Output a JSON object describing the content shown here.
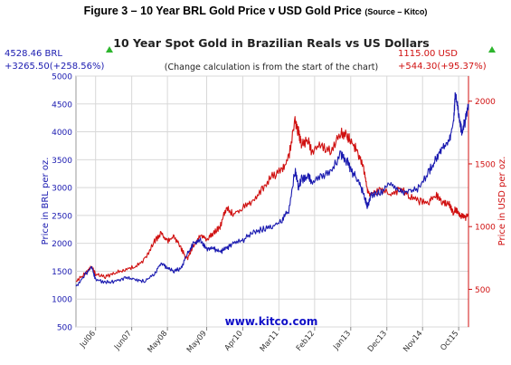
{
  "figure": {
    "caption_main": "Figure 3 – 10 Year BRL Gold Price v USD Gold Price",
    "caption_source": "(Source – Kitco)"
  },
  "chart_data": {
    "type": "line",
    "title": "10 Year Spot Gold in Brazilian Reals vs US Dollars",
    "subtitle": "(Change calculation is from the start of the chart)",
    "watermark": "www.kitco.com",
    "left_readout": {
      "price": "4528.46 BRL",
      "change": "+3265.50(+258.56%)",
      "color": "#1a1ab0"
    },
    "right_readout": {
      "price": "1115.00 USD",
      "change": "+544.30(+95.37%)",
      "color": "#d01010"
    },
    "up_marker_color": "#2db52d",
    "ylabel_left": "Price in BRL per oz.",
    "ylabel_right": "Price in USD per oz.",
    "ylim_left": [
      500,
      5000
    ],
    "ylim_right": [
      200,
      2200
    ],
    "yticks_left": [
      500,
      1000,
      1500,
      2000,
      2500,
      3000,
      3500,
      4000,
      4500,
      5000
    ],
    "yticks_right": [
      500,
      1000,
      1500,
      2000
    ],
    "xlim": [
      2006.0,
      2016.0
    ],
    "xticks": [
      {
        "label": "Jul06",
        "x": 2006.5
      },
      {
        "label": "Jun07",
        "x": 2007.42
      },
      {
        "label": "May08",
        "x": 2008.33
      },
      {
        "label": "May09",
        "x": 2009.33
      },
      {
        "label": "Apr10",
        "x": 2010.25
      },
      {
        "label": "Mar11",
        "x": 2011.17
      },
      {
        "label": "Feb12",
        "x": 2012.08
      },
      {
        "label": "Jan13",
        "x": 2013.0
      },
      {
        "label": "Dec13",
        "x": 2013.92
      },
      {
        "label": "Nov14",
        "x": 2014.83
      },
      {
        "label": "Oct15",
        "x": 2015.75
      }
    ],
    "grid": true,
    "series": [
      {
        "name": "BRL",
        "axis": "left",
        "color": "#1a1ab0",
        "x": [
          2006.0,
          2006.25,
          2006.4,
          2006.5,
          2006.75,
          2007.0,
          2007.25,
          2007.5,
          2007.75,
          2008.0,
          2008.17,
          2008.33,
          2008.5,
          2008.67,
          2008.83,
          2009.0,
          2009.17,
          2009.33,
          2009.5,
          2009.67,
          2009.83,
          2010.0,
          2010.25,
          2010.5,
          2010.75,
          2011.0,
          2011.25,
          2011.42,
          2011.58,
          2011.67,
          2011.75,
          2011.92,
          2012.0,
          2012.25,
          2012.5,
          2012.75,
          2012.92,
          2013.0,
          2013.17,
          2013.33,
          2013.42,
          2013.5,
          2013.75,
          2014.0,
          2014.25,
          2014.5,
          2014.75,
          2015.0,
          2015.17,
          2015.33,
          2015.5,
          2015.62,
          2015.67,
          2015.75,
          2015.83,
          2015.92,
          2016.0
        ],
        "values": [
          1230,
          1450,
          1580,
          1350,
          1300,
          1320,
          1380,
          1350,
          1320,
          1450,
          1650,
          1550,
          1500,
          1550,
          1800,
          2000,
          2050,
          1900,
          1900,
          1850,
          1900,
          2000,
          2050,
          2200,
          2250,
          2300,
          2400,
          2600,
          3300,
          3000,
          3150,
          3200,
          3100,
          3200,
          3300,
          3600,
          3450,
          3300,
          3150,
          2900,
          2650,
          2850,
          2900,
          3100,
          2950,
          2900,
          3000,
          3300,
          3500,
          3700,
          3800,
          4200,
          4700,
          4300,
          4000,
          4200,
          4500
        ]
      },
      {
        "name": "USD",
        "axis": "right",
        "color": "#d01010",
        "x": [
          2006.0,
          2006.25,
          2006.4,
          2006.5,
          2006.75,
          2007.0,
          2007.25,
          2007.5,
          2007.75,
          2008.0,
          2008.17,
          2008.33,
          2008.5,
          2008.67,
          2008.83,
          2009.0,
          2009.17,
          2009.33,
          2009.5,
          2009.67,
          2009.83,
          2010.0,
          2010.25,
          2010.5,
          2010.75,
          2011.0,
          2011.25,
          2011.42,
          2011.58,
          2011.67,
          2011.75,
          2011.92,
          2012.0,
          2012.25,
          2012.5,
          2012.75,
          2012.92,
          2013.0,
          2013.17,
          2013.33,
          2013.42,
          2013.5,
          2013.75,
          2014.0,
          2014.25,
          2014.5,
          2014.75,
          2015.0,
          2015.17,
          2015.33,
          2015.5,
          2015.62,
          2015.67,
          2015.75,
          2015.83,
          2015.92,
          2016.0
        ],
        "values": [
          560,
          630,
          680,
          620,
          600,
          630,
          660,
          680,
          740,
          880,
          950,
          880,
          920,
          830,
          740,
          850,
          930,
          900,
          950,
          1000,
          1150,
          1100,
          1150,
          1200,
          1300,
          1400,
          1450,
          1550,
          1850,
          1750,
          1650,
          1700,
          1600,
          1650,
          1600,
          1750,
          1720,
          1680,
          1600,
          1450,
          1300,
          1250,
          1300,
          1250,
          1300,
          1250,
          1200,
          1200,
          1250,
          1200,
          1180,
          1100,
          1150,
          1100,
          1080,
          1070,
          1100
        ]
      }
    ]
  }
}
